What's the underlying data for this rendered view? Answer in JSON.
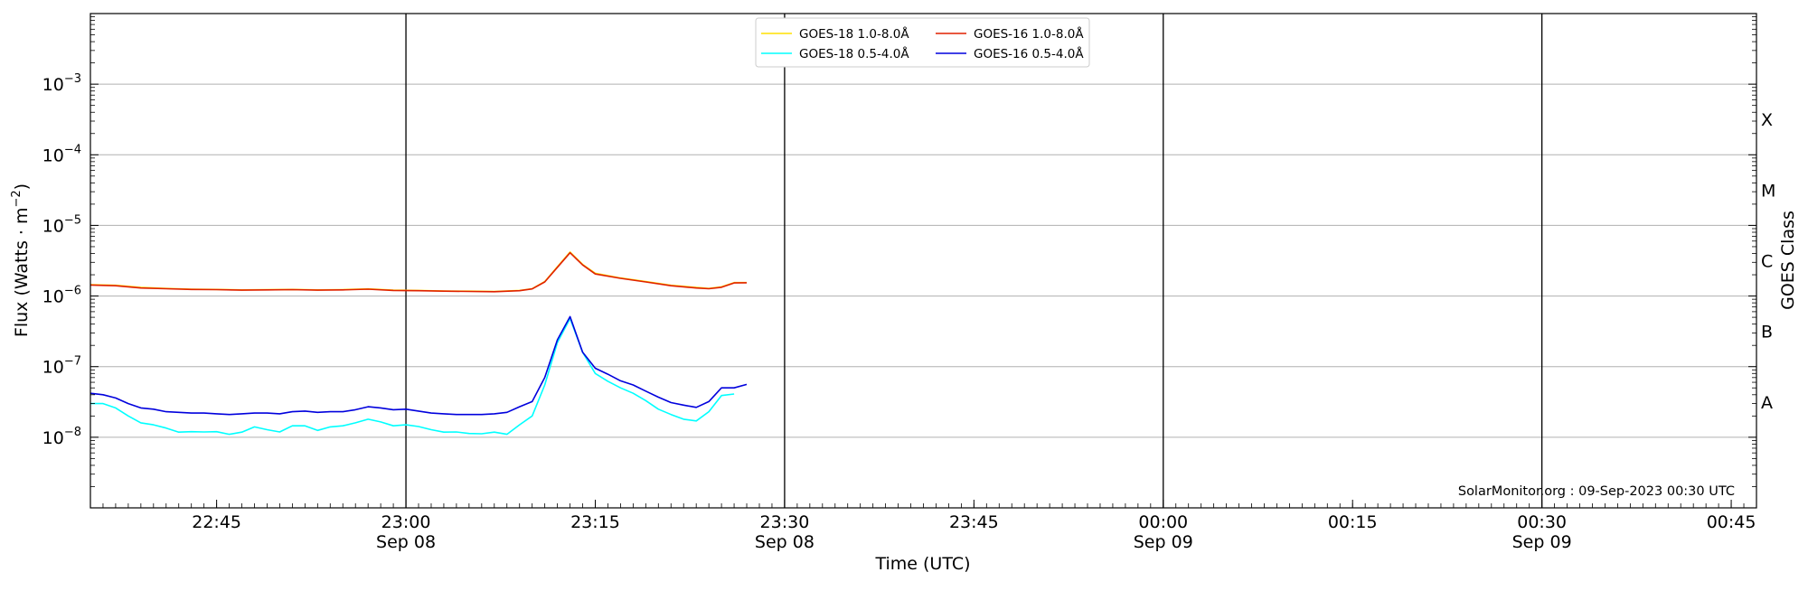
{
  "colors": {
    "goes18_long": "#ffe000",
    "goes16_long": "#e02000",
    "goes18_short": "#00ffff",
    "goes16_short": "#0000dd",
    "grid": "#b0b0b0",
    "vline": "#000000"
  },
  "chart_data": {
    "type": "line",
    "ylabel": "Flux (Watts · m",
    "ylabel_sup": "−2",
    "ylabel_close": ")",
    "xlabel": "Time (UTC)",
    "right_label": "GOES Class",
    "credit": "SolarMonitor.org : 09-Sep-2023 00:30 UTC",
    "y_scale": "log",
    "ylim": [
      1e-09,
      0.01
    ],
    "xlim": [
      "2023-09-08 22:35",
      "2023-09-09 00:47"
    ],
    "grid": "horizontal at decades 1e-8 to 1e-3",
    "legend_placement": "top-center",
    "y_ticks": [
      {
        "base": "10",
        "exp": "−3",
        "value": 0.001
      },
      {
        "base": "10",
        "exp": "−4",
        "value": 0.0001
      },
      {
        "base": "10",
        "exp": "−5",
        "value": 1e-05
      },
      {
        "base": "10",
        "exp": "−6",
        "value": 1e-06
      },
      {
        "base": "10",
        "exp": "−7",
        "value": 1e-07
      },
      {
        "base": "10",
        "exp": "−8",
        "value": 1e-08
      }
    ],
    "x_ticks": [
      {
        "time": "2023-09-08 22:45",
        "label": "22:45",
        "sub": ""
      },
      {
        "time": "2023-09-08 23:00",
        "label": "23:00",
        "sub": "Sep 08"
      },
      {
        "time": "2023-09-08 23:15",
        "label": "23:15",
        "sub": ""
      },
      {
        "time": "2023-09-08 23:30",
        "label": "23:30",
        "sub": "Sep 08"
      },
      {
        "time": "2023-09-08 23:45",
        "label": "23:45",
        "sub": ""
      },
      {
        "time": "2023-09-09 00:00",
        "label": "00:00",
        "sub": "Sep 09"
      },
      {
        "time": "2023-09-09 00:15",
        "label": "00:15",
        "sub": ""
      },
      {
        "time": "2023-09-09 00:30",
        "label": "00:30",
        "sub": "Sep 09"
      },
      {
        "time": "2023-09-09 00:45",
        "label": "00:45",
        "sub": ""
      }
    ],
    "vertical_lines": [
      "2023-09-08 23:00",
      "2023-09-08 23:30",
      "2023-09-09 00:00",
      "2023-09-09 00:30"
    ],
    "goes_classes": [
      {
        "label": "X",
        "value": 0.0001
      },
      {
        "label": "M",
        "value": 1e-05
      },
      {
        "label": "C",
        "value": 1e-06
      },
      {
        "label": "B",
        "value": 1e-07
      },
      {
        "label": "A",
        "value": 1e-08
      }
    ],
    "legend": [
      {
        "label": "GOES-18 1.0-8.0",
        "series": 0
      },
      {
        "label": "GOES-18 0.5-4.0",
        "series": 2
      },
      {
        "label": "GOES-16 1.0-8.0",
        "series": 1
      },
      {
        "label": "GOES-16 0.5-4.0",
        "series": 3
      }
    ],
    "angstrom": "Å",
    "series": [
      {
        "name": "GOES-18 1.0-8.0Å",
        "color_key": "goes18_long",
        "x": [
          "2023-09-08 22:35",
          "2023-09-08 22:37",
          "2023-09-08 22:39",
          "2023-09-08 22:41",
          "2023-09-08 22:43",
          "2023-09-08 22:45",
          "2023-09-08 22:47",
          "2023-09-08 22:49",
          "2023-09-08 22:51",
          "2023-09-08 22:53",
          "2023-09-08 22:55",
          "2023-09-08 22:57",
          "2023-09-08 22:59",
          "2023-09-08 23:01",
          "2023-09-08 23:03",
          "2023-09-08 23:05",
          "2023-09-08 23:07",
          "2023-09-08 23:09",
          "2023-09-08 23:10",
          "2023-09-08 23:11",
          "2023-09-08 23:12",
          "2023-09-08 23:13",
          "2023-09-08 23:14",
          "2023-09-08 23:15",
          "2023-09-08 23:17",
          "2023-09-08 23:19",
          "2023-09-08 23:21",
          "2023-09-08 23:23",
          "2023-09-08 23:24",
          "2023-09-08 23:25",
          "2023-09-08 23:26",
          "2023-09-08 23:27"
        ],
        "y": [
          1.45e-06,
          1.42e-06,
          1.32e-06,
          1.28e-06,
          1.25e-06,
          1.24e-06,
          1.22e-06,
          1.23e-06,
          1.24e-06,
          1.22e-06,
          1.23e-06,
          1.26e-06,
          1.21e-06,
          1.2e-06,
          1.18e-06,
          1.17e-06,
          1.16e-06,
          1.2e-06,
          1.27e-06,
          1.6e-06,
          2.6e-06,
          4.2e-06,
          2.8e-06,
          2.1e-06,
          1.8e-06,
          1.6e-06,
          1.42e-06,
          1.32e-06,
          1.28e-06,
          1.35e-06,
          1.55e-06,
          1.55e-06
        ]
      },
      {
        "name": "GOES-16 1.0-8.0Å",
        "color_key": "goes16_long",
        "x": [
          "2023-09-08 22:35",
          "2023-09-08 22:37",
          "2023-09-08 22:39",
          "2023-09-08 22:41",
          "2023-09-08 22:43",
          "2023-09-08 22:45",
          "2023-09-08 22:47",
          "2023-09-08 22:49",
          "2023-09-08 22:51",
          "2023-09-08 22:53",
          "2023-09-08 22:55",
          "2023-09-08 22:57",
          "2023-09-08 22:59",
          "2023-09-08 23:01",
          "2023-09-08 23:03",
          "2023-09-08 23:05",
          "2023-09-08 23:07",
          "2023-09-08 23:09",
          "2023-09-08 23:10",
          "2023-09-08 23:11",
          "2023-09-08 23:12",
          "2023-09-08 23:13",
          "2023-09-08 23:14",
          "2023-09-08 23:15",
          "2023-09-08 23:17",
          "2023-09-08 23:19",
          "2023-09-08 23:21",
          "2023-09-08 23:23",
          "2023-09-08 23:24",
          "2023-09-08 23:25",
          "2023-09-08 23:26",
          "2023-09-08 23:27"
        ],
        "y": [
          1.43e-06,
          1.4e-06,
          1.3e-06,
          1.27e-06,
          1.24e-06,
          1.23e-06,
          1.21e-06,
          1.22e-06,
          1.23e-06,
          1.21e-06,
          1.22e-06,
          1.25e-06,
          1.2e-06,
          1.19e-06,
          1.17e-06,
          1.16e-06,
          1.15e-06,
          1.19e-06,
          1.26e-06,
          1.58e-06,
          2.55e-06,
          4.1e-06,
          2.75e-06,
          2.05e-06,
          1.78e-06,
          1.58e-06,
          1.4e-06,
          1.3e-06,
          1.27e-06,
          1.33e-06,
          1.53e-06,
          1.54e-06
        ]
      },
      {
        "name": "GOES-18 0.5-4.0Å",
        "color_key": "goes18_short",
        "x": [
          "2023-09-08 22:35",
          "2023-09-08 22:36",
          "2023-09-08 22:37",
          "2023-09-08 22:38",
          "2023-09-08 22:39",
          "2023-09-08 22:40",
          "2023-09-08 22:41",
          "2023-09-08 22:42",
          "2023-09-08 22:43",
          "2023-09-08 22:44",
          "2023-09-08 22:45",
          "2023-09-08 22:46",
          "2023-09-08 22:47",
          "2023-09-08 22:48",
          "2023-09-08 22:49",
          "2023-09-08 22:50",
          "2023-09-08 22:51",
          "2023-09-08 22:52",
          "2023-09-08 22:53",
          "2023-09-08 22:54",
          "2023-09-08 22:55",
          "2023-09-08 22:56",
          "2023-09-08 22:57",
          "2023-09-08 22:58",
          "2023-09-08 22:59",
          "2023-09-08 23:00",
          "2023-09-08 23:01",
          "2023-09-08 23:02",
          "2023-09-08 23:03",
          "2023-09-08 23:04",
          "2023-09-08 23:05",
          "2023-09-08 23:06",
          "2023-09-08 23:07",
          "2023-09-08 23:08",
          "2023-09-08 23:09",
          "2023-09-08 23:10",
          "2023-09-08 23:11",
          "2023-09-08 23:12",
          "2023-09-08 23:13",
          "2023-09-08 23:14",
          "2023-09-08 23:15",
          "2023-09-08 23:16",
          "2023-09-08 23:17",
          "2023-09-08 23:18",
          "2023-09-08 23:19",
          "2023-09-08 23:20",
          "2023-09-08 23:21",
          "2023-09-08 23:22",
          "2023-09-08 23:23",
          "2023-09-08 23:24",
          "2023-09-08 23:25",
          "2023-09-08 23:26"
        ],
        "y": [
          3e-08,
          3e-08,
          2.6e-08,
          2e-08,
          1.6e-08,
          1.5e-08,
          1.35e-08,
          1.18e-08,
          1.2e-08,
          1.19e-08,
          1.2e-08,
          1.1e-08,
          1.18e-08,
          1.4e-08,
          1.28e-08,
          1.19e-08,
          1.45e-08,
          1.45e-08,
          1.25e-08,
          1.4e-08,
          1.45e-08,
          1.6e-08,
          1.8e-08,
          1.65e-08,
          1.45e-08,
          1.5e-08,
          1.42e-08,
          1.28e-08,
          1.18e-08,
          1.19e-08,
          1.13e-08,
          1.12e-08,
          1.18e-08,
          1.1e-08,
          1.5e-08,
          2e-08,
          5.5e-08,
          2.2e-07,
          4.8e-07,
          1.6e-07,
          8e-08,
          6.2e-08,
          5e-08,
          4.2e-08,
          3.3e-08,
          2.5e-08,
          2.1e-08,
          1.8e-08,
          1.7e-08,
          2.3e-08,
          3.9e-08,
          4.1e-08
        ]
      },
      {
        "name": "GOES-16 0.5-4.0Å",
        "color_key": "goes16_short",
        "x": [
          "2023-09-08 22:35",
          "2023-09-08 22:36",
          "2023-09-08 22:37",
          "2023-09-08 22:38",
          "2023-09-08 22:39",
          "2023-09-08 22:40",
          "2023-09-08 22:41",
          "2023-09-08 22:42",
          "2023-09-08 22:43",
          "2023-09-08 22:44",
          "2023-09-08 22:45",
          "2023-09-08 22:46",
          "2023-09-08 22:47",
          "2023-09-08 22:48",
          "2023-09-08 22:49",
          "2023-09-08 22:50",
          "2023-09-08 22:51",
          "2023-09-08 22:52",
          "2023-09-08 22:53",
          "2023-09-08 22:54",
          "2023-09-08 22:55",
          "2023-09-08 22:56",
          "2023-09-08 22:57",
          "2023-09-08 22:58",
          "2023-09-08 22:59",
          "2023-09-08 23:00",
          "2023-09-08 23:01",
          "2023-09-08 23:02",
          "2023-09-08 23:03",
          "2023-09-08 23:04",
          "2023-09-08 23:05",
          "2023-09-08 23:06",
          "2023-09-08 23:07",
          "2023-09-08 23:08",
          "2023-09-08 23:09",
          "2023-09-08 23:10",
          "2023-09-08 23:11",
          "2023-09-08 23:12",
          "2023-09-08 23:13",
          "2023-09-08 23:14",
          "2023-09-08 23:15",
          "2023-09-08 23:16",
          "2023-09-08 23:17",
          "2023-09-08 23:18",
          "2023-09-08 23:19",
          "2023-09-08 23:20",
          "2023-09-08 23:21",
          "2023-09-08 23:22",
          "2023-09-08 23:23",
          "2023-09-08 23:24",
          "2023-09-08 23:25",
          "2023-09-08 23:26",
          "2023-09-08 23:27"
        ],
        "y": [
          4.2e-08,
          4e-08,
          3.6e-08,
          3e-08,
          2.6e-08,
          2.5e-08,
          2.3e-08,
          2.25e-08,
          2.2e-08,
          2.2e-08,
          2.15e-08,
          2.1e-08,
          2.15e-08,
          2.2e-08,
          2.2e-08,
          2.15e-08,
          2.3e-08,
          2.35e-08,
          2.25e-08,
          2.3e-08,
          2.3e-08,
          2.45e-08,
          2.7e-08,
          2.6e-08,
          2.45e-08,
          2.5e-08,
          2.35e-08,
          2.2e-08,
          2.15e-08,
          2.1e-08,
          2.1e-08,
          2.1e-08,
          2.15e-08,
          2.25e-08,
          2.7e-08,
          3.2e-08,
          7e-08,
          2.4e-07,
          5.1e-07,
          1.6e-07,
          9.5e-08,
          7.8e-08,
          6.3e-08,
          5.5e-08,
          4.5e-08,
          3.7e-08,
          3.1e-08,
          2.85e-08,
          2.65e-08,
          3.2e-08,
          5e-08,
          5e-08,
          5.6e-08
        ]
      }
    ]
  }
}
